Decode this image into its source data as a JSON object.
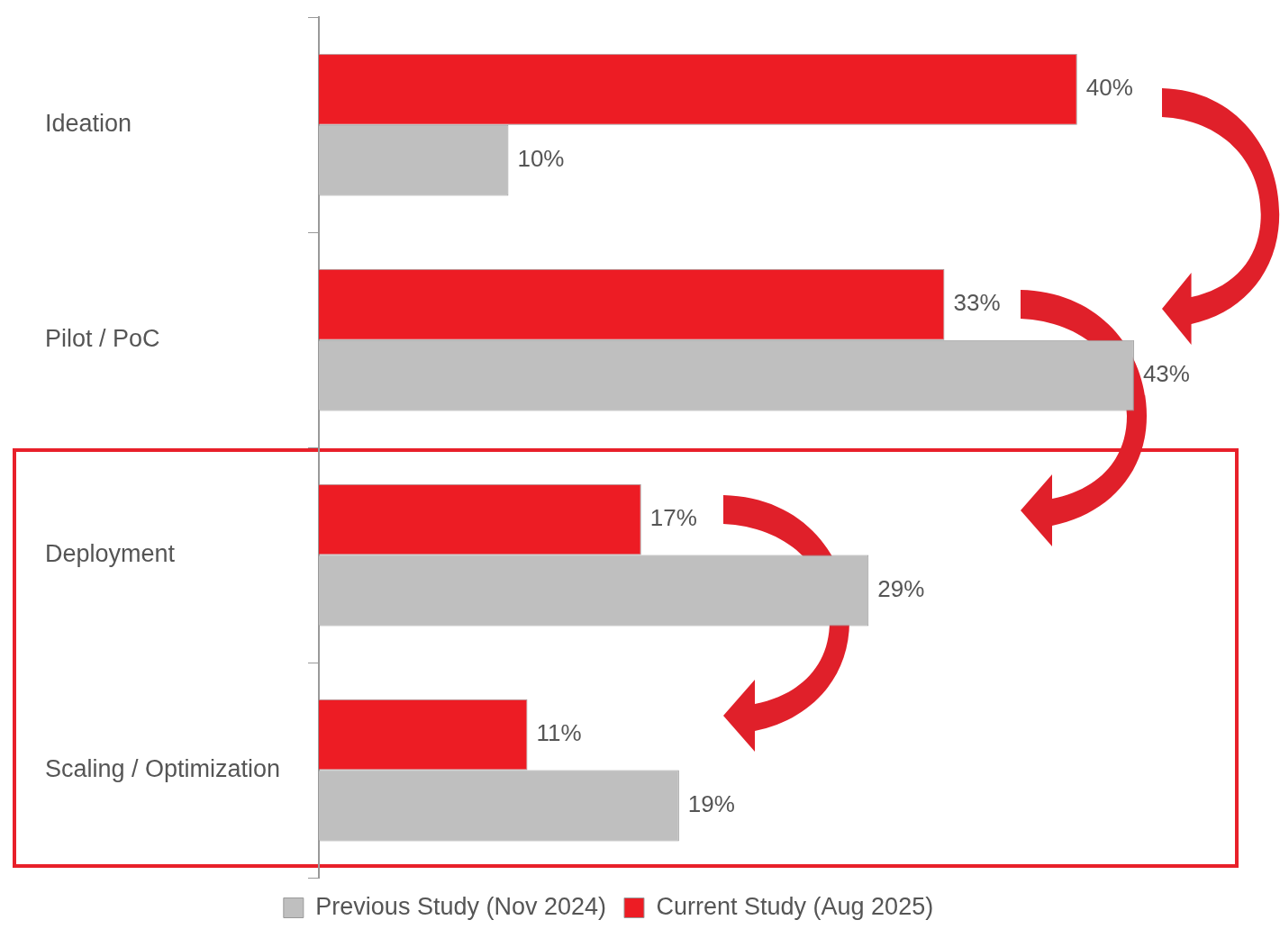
{
  "chart_data": {
    "type": "bar",
    "orientation": "horizontal",
    "categories": [
      "Ideation",
      "Pilot / PoC",
      "Deployment",
      "Scaling / Optimization"
    ],
    "series": [
      {
        "name": "Current Study (Aug 2025)",
        "color": "#ed1c24",
        "values": [
          40,
          33,
          17,
          11
        ],
        "value_labels": [
          "40%",
          "33%",
          "17%",
          "11%"
        ]
      },
      {
        "name": "Previous Study (Nov 2024)",
        "color": "#bfbfbf",
        "values": [
          10,
          43,
          29,
          19
        ],
        "value_labels": [
          "10%",
          "43%",
          "29%",
          "19%"
        ]
      }
    ],
    "legend": "bottom",
    "tick_labels": "y"
  }
}
